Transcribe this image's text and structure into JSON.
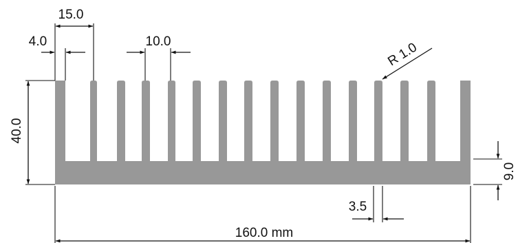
{
  "drawing": {
    "profile_color": "#989898",
    "line_color": "#111111",
    "background_color": "#ffffff",
    "dimensions": {
      "overall_width": "160.0 mm",
      "height": "40.0",
      "fin_pitch_outer": "15.0",
      "outer_fin_thickness": "4.0",
      "fin_pitch": "10.0",
      "fin_radius": "R 1.0",
      "inner_fin_thickness": "3.5",
      "base_thickness": "9.0"
    }
  }
}
